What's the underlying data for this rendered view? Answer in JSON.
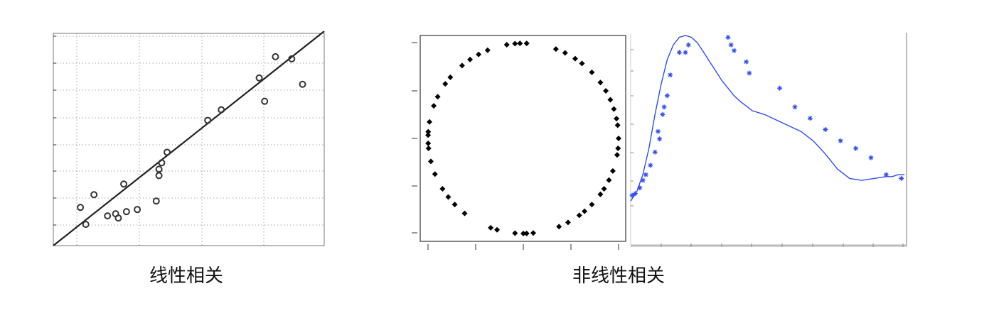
{
  "captions": {
    "linear": "线性相关",
    "nonlinear": "非线性相关"
  },
  "colors": {
    "axis": "#333333",
    "grid": "#aaaaaa",
    "marker": "#333333",
    "circle_marker": "#000000",
    "curve": "#2f4df0",
    "stars": "#2f4df0",
    "frame": "#555555"
  },
  "chart_data": [
    {
      "type": "scatter",
      "name": "linear",
      "title": "",
      "xlabel": "",
      "ylabel": "",
      "grid": true,
      "xlim": [
        0,
        10
      ],
      "ylim": [
        0,
        10
      ],
      "marker": "open-circle",
      "x": [
        1.0,
        1.2,
        1.5,
        2.0,
        2.3,
        2.4,
        2.6,
        2.7,
        3.1,
        3.8,
        3.9,
        3.9,
        4.0,
        4.2,
        5.7,
        6.2,
        7.6,
        7.8,
        8.2,
        8.8,
        9.2
      ],
      "y": [
        1.8,
        1.0,
        2.4,
        1.4,
        1.5,
        1.3,
        2.9,
        1.6,
        1.7,
        2.1,
        3.6,
        3.3,
        3.9,
        4.4,
        5.9,
        6.4,
        7.9,
        6.8,
        8.9,
        8.8,
        7.6
      ],
      "fit_line": {
        "x": [
          0,
          10
        ],
        "y": [
          0,
          10.1
        ]
      }
    },
    {
      "type": "scatter",
      "name": "circle",
      "title": "",
      "xlabel": "",
      "ylabel": "",
      "grid": false,
      "xlim": [
        -1.05,
        1.05
      ],
      "ylim": [
        -1.05,
        1.05
      ],
      "marker": "filled-diamond",
      "angles_deg": [
        0,
        8,
        12,
        18,
        24,
        30,
        36,
        44,
        52,
        57,
        64,
        70,
        88,
        92,
        95,
        100,
        112,
        118,
        124,
        130,
        140,
        145,
        154,
        160,
        170,
        176,
        178,
        183,
        186,
        194,
        202,
        212,
        218,
        224,
        232,
        250,
        254,
        265,
        270,
        272,
        276,
        292,
        298,
        306,
        310,
        316,
        324,
        328,
        334,
        340,
        350,
        354
      ],
      "radius": 1.0
    },
    {
      "type": "line",
      "name": "curve-fit",
      "title": "",
      "xlabel": "",
      "ylabel": "",
      "grid": false,
      "xlim": [
        0,
        90
      ],
      "ylim": [
        0,
        1
      ],
      "series": [
        {
          "style": "line",
          "x": [
            0,
            2,
            4,
            6,
            8,
            10,
            12,
            14,
            16,
            18,
            20,
            22,
            24,
            26,
            28,
            30,
            32,
            34,
            36,
            40,
            44,
            48,
            52,
            56,
            60,
            64,
            68,
            72,
            76,
            80,
            84,
            86,
            88,
            90
          ],
          "y": [
            0.12,
            0.17,
            0.26,
            0.4,
            0.58,
            0.74,
            0.87,
            0.95,
            0.99,
            1.0,
            0.99,
            0.96,
            0.91,
            0.86,
            0.81,
            0.76,
            0.72,
            0.68,
            0.65,
            0.6,
            0.58,
            0.55,
            0.52,
            0.49,
            0.44,
            0.37,
            0.29,
            0.24,
            0.23,
            0.24,
            0.25,
            0.25,
            0.26,
            0.26
          ]
        },
        {
          "style": "stars",
          "x": [
            0.5,
            1.5,
            3,
            4,
            5,
            6.5,
            8,
            9,
            9.5,
            10.5,
            11,
            12,
            13,
            16,
            18,
            19,
            32,
            33,
            34,
            38,
            39,
            49,
            54,
            59,
            64,
            69,
            74,
            79,
            84,
            89
          ],
          "y": [
            0.15,
            0.16,
            0.19,
            0.23,
            0.26,
            0.31,
            0.38,
            0.49,
            0.45,
            0.58,
            0.62,
            0.68,
            0.79,
            0.91,
            0.91,
            0.95,
            0.99,
            0.95,
            0.92,
            0.86,
            0.8,
            0.72,
            0.62,
            0.56,
            0.5,
            0.44,
            0.4,
            0.35,
            0.26,
            0.24
          ]
        }
      ]
    }
  ]
}
